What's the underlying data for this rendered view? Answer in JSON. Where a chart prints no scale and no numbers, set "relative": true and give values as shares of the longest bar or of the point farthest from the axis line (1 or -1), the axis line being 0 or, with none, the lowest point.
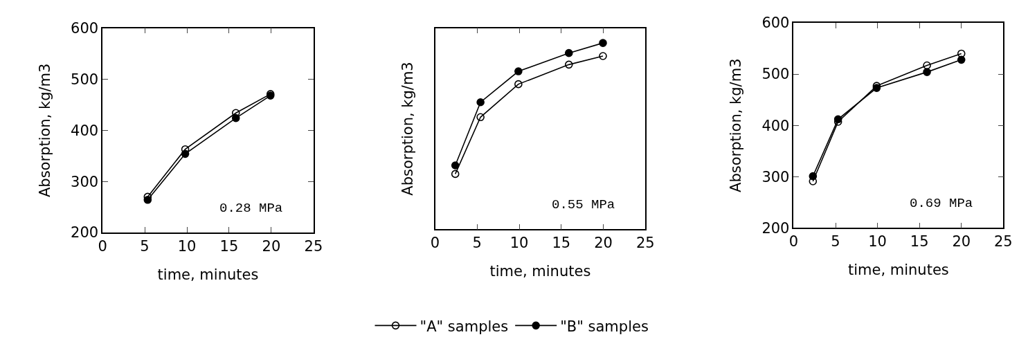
{
  "chart_data": [
    {
      "type": "line",
      "xlabel": "time, minutes",
      "ylabel": "Absorption, kg/m3",
      "xlim": [
        0,
        25
      ],
      "xticks": [
        0,
        5,
        10,
        15,
        20,
        25
      ],
      "ylim": [
        200,
        600
      ],
      "yticks": [
        200,
        300,
        400,
        500,
        600
      ],
      "legend": "bottom",
      "annotations": [
        "0.28 MPa"
      ],
      "series": [
        {
          "name": "\"A\" samples",
          "color": "#000000",
          "marker": "circle-open",
          "x": [
            5.35,
            9.8,
            15.8,
            19.9
          ],
          "values": [
            270,
            363,
            434,
            471
          ]
        },
        {
          "name": "\"B\" samples",
          "color": "#000000",
          "marker": "circle",
          "x": [
            5.35,
            9.8,
            15.8,
            19.9
          ],
          "values": [
            264,
            354,
            424,
            468
          ]
        }
      ]
    },
    {
      "type": "line",
      "relative": true,
      "xlabel": "time, minutes",
      "ylabel": "Absorption, kg/m3",
      "xlim": [
        0,
        25
      ],
      "xticks": [
        0,
        5,
        10,
        15,
        20,
        25
      ],
      "annotations": [
        "0.55 MPa"
      ],
      "series": [
        {
          "color": "#000000",
          "marker": "circle-open",
          "x": [
            2.4,
            5.4,
            9.9,
            15.9,
            19.95
          ],
          "values": [
            0.297,
            0.602,
            0.779,
            0.884,
            0.93
          ]
        },
        {
          "color": "#000000",
          "marker": "circle",
          "x": [
            2.4,
            5.4,
            9.9,
            15.9,
            19.95
          ],
          "values": [
            0.343,
            0.682,
            0.848,
            0.946,
            1
          ]
        }
      ]
    },
    {
      "type": "line",
      "xlabel": "time, minutes",
      "ylabel": "Absorption, kg/m3",
      "xlim": [
        0,
        25
      ],
      "xticks": [
        0,
        5,
        10,
        15,
        20,
        25
      ],
      "ylim": [
        200,
        600
      ],
      "yticks": [
        200,
        300,
        400,
        500,
        600
      ],
      "annotations": [
        "0.69 MPa"
      ],
      "series": [
        {
          "color": "#000000",
          "marker": "circle-open",
          "x": [
            2.3,
            5.3,
            9.9,
            15.9,
            20
          ],
          "values": [
            291,
            407,
            477,
            517,
            540
          ]
        },
        {
          "color": "#000000",
          "marker": "circle",
          "x": [
            2.3,
            5.3,
            9.9,
            15.9,
            20
          ],
          "values": [
            301,
            412,
            473,
            504,
            528
          ]
        }
      ]
    }
  ]
}
